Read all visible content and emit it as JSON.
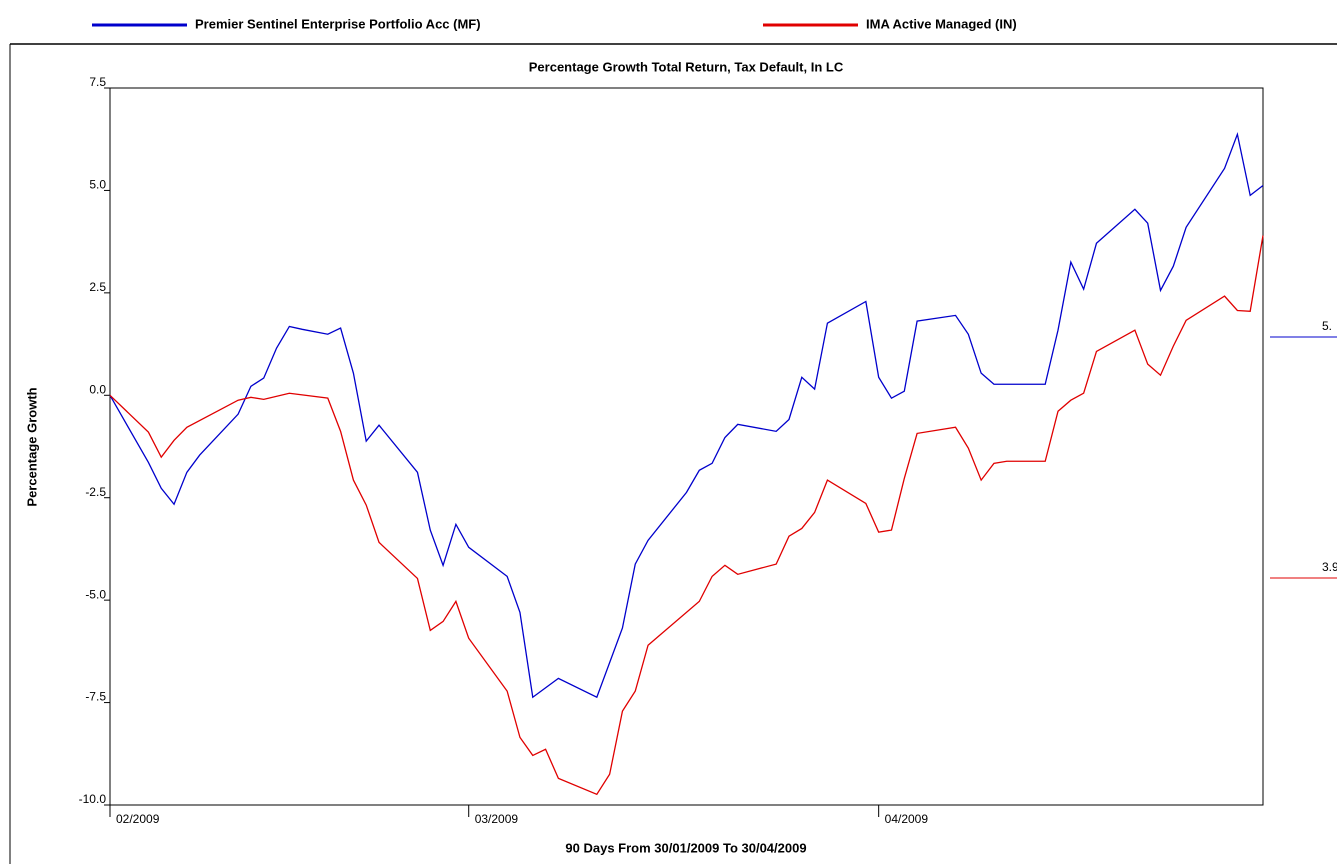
{
  "chart_data": {
    "type": "line",
    "title": "Percentage Growth Total Return, Tax Default, In LC",
    "x_label": "90 Days From 30/01/2009 To 30/04/2009",
    "y_label": "Percentage Growth",
    "xlim": [
      0,
      90
    ],
    "xticks": [
      {
        "value": 0,
        "label": "02/2009"
      },
      {
        "value": 28,
        "label": "03/2009"
      },
      {
        "value": 60,
        "label": "04/2009"
      }
    ],
    "ylim": [
      -10,
      7.5
    ],
    "yticks": [
      {
        "value": -10,
        "label": "-10.0"
      },
      -7.5,
      {
        "value": -5,
        "label": "-5.0"
      },
      -2.5,
      {
        "value": 0,
        "label": "0.0"
      },
      2.5,
      {
        "value": 5,
        "label": "5.0"
      },
      7.5
    ],
    "legend": "top",
    "series": [
      {
        "name": "Premier Sentinel Enterprise Portfolio Acc (MF)",
        "color": "#0000cc",
        "end_label": "5.",
        "x": [
          0,
          3,
          4,
          5,
          6,
          7,
          10,
          11,
          12,
          13,
          14,
          15,
          17,
          18,
          19,
          20,
          21,
          24,
          25,
          26,
          27,
          28,
          31,
          32,
          33,
          35,
          38,
          40,
          41,
          42,
          45,
          46,
          47,
          48,
          49,
          52,
          53,
          54,
          55,
          56,
          59,
          60,
          61,
          62,
          63,
          66,
          67,
          68,
          69,
          73,
          74,
          75,
          76,
          77,
          80,
          81,
          82,
          83,
          84,
          87,
          88,
          89,
          90
        ],
        "values": [
          0,
          -1.64,
          -2.27,
          -2.66,
          -1.88,
          -1.46,
          -0.46,
          0.22,
          0.42,
          1.15,
          1.68,
          1.61,
          1.49,
          1.64,
          0.54,
          -1.12,
          -0.73,
          -1.88,
          -3.29,
          -4.15,
          -3.15,
          -3.71,
          -4.42,
          -5.3,
          -7.37,
          -6.91,
          -7.37,
          -5.68,
          -4.12,
          -3.54,
          -2.37,
          -1.83,
          -1.66,
          -1.03,
          -0.71,
          -0.88,
          -0.59,
          0.44,
          0.15,
          1.76,
          2.29,
          0.44,
          -0.07,
          0.1,
          1.81,
          1.95,
          1.49,
          0.54,
          0.27,
          0.27,
          1.59,
          3.25,
          2.59,
          3.71,
          4.54,
          4.2,
          2.56,
          3.15,
          4.1,
          5.54,
          6.37,
          4.88,
          5.12
        ]
      },
      {
        "name": "IMA Active Managed (IN)",
        "color": "#e00000",
        "end_label": "3.9",
        "x": [
          0,
          3,
          4,
          5,
          6,
          10,
          11,
          12,
          14,
          17,
          18,
          19,
          20,
          21,
          24,
          25,
          26,
          27,
          28,
          31,
          32,
          33,
          34,
          35,
          38,
          39,
          40,
          41,
          42,
          46,
          47,
          48,
          49,
          52,
          53,
          54,
          55,
          56,
          59,
          60,
          61,
          62,
          63,
          66,
          67,
          68,
          69,
          70,
          73,
          74,
          75,
          76,
          77,
          80,
          81,
          82,
          83,
          84,
          87,
          88,
          89,
          90
        ],
        "values": [
          0,
          -0.9,
          -1.51,
          -1.1,
          -0.78,
          -0.12,
          -0.05,
          -0.1,
          0.05,
          -0.07,
          -0.88,
          -2.07,
          -2.68,
          -3.59,
          -4.47,
          -5.74,
          -5.52,
          -5.03,
          -5.93,
          -7.22,
          -8.35,
          -8.79,
          -8.64,
          -9.35,
          -9.74,
          -9.25,
          -7.71,
          -7.22,
          -6.1,
          -5.03,
          -4.42,
          -4.15,
          -4.37,
          -4.12,
          -3.44,
          -3.25,
          -2.86,
          -2.07,
          -2.64,
          -3.34,
          -3.29,
          -2.03,
          -0.93,
          -0.78,
          -1.29,
          -2.07,
          -1.66,
          -1.61,
          -1.61,
          -0.39,
          -0.12,
          0.05,
          1.07,
          1.59,
          0.76,
          0.49,
          1.2,
          1.83,
          2.42,
          2.07,
          2.05,
          3.9
        ]
      }
    ]
  }
}
